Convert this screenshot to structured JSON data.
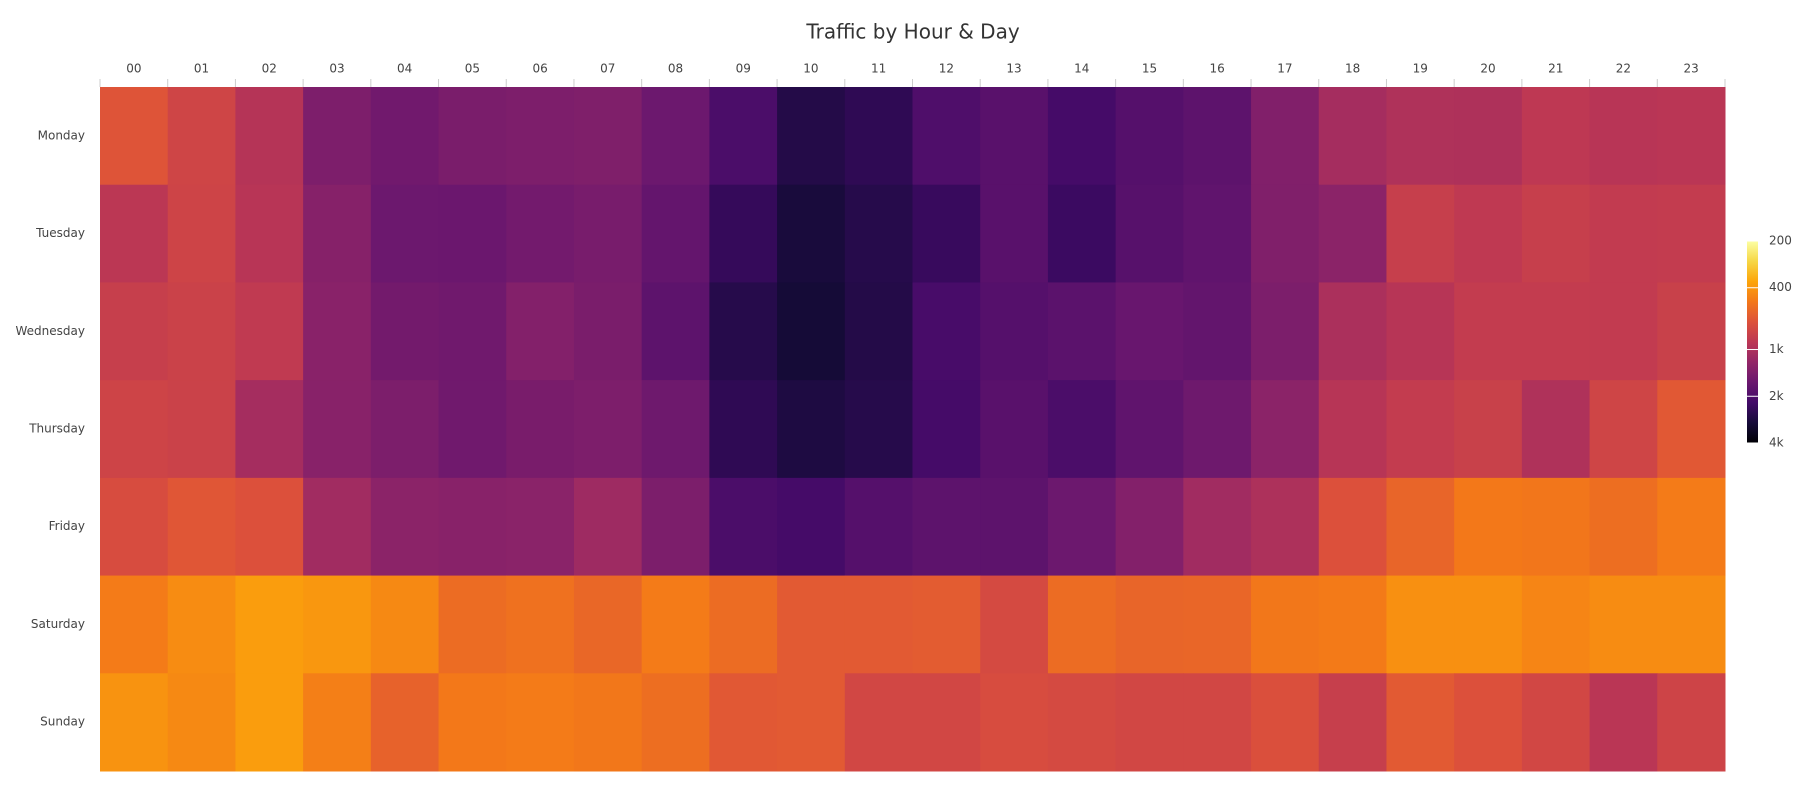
{
  "chart_data": {
    "type": "heatmap",
    "title": "Traffic by Hour & Day",
    "x": [
      "00",
      "01",
      "02",
      "03",
      "04",
      "05",
      "06",
      "07",
      "08",
      "09",
      "10",
      "11",
      "12",
      "13",
      "14",
      "15",
      "16",
      "17",
      "18",
      "19",
      "20",
      "21",
      "22",
      "23"
    ],
    "y": [
      "Monday",
      "Tuesday",
      "Wednesday",
      "Thursday",
      "Friday",
      "Saturday",
      "Sunday"
    ],
    "z": [
      [
        650,
        760,
        940,
        1420,
        1550,
        1450,
        1420,
        1400,
        1600,
        2050,
        2700,
        2500,
        2000,
        1850,
        2150,
        1900,
        1800,
        1380,
        1060,
        980,
        990,
        880,
        920,
        910
      ],
      [
        900,
        770,
        920,
        1330,
        1600,
        1620,
        1530,
        1470,
        1700,
        2400,
        2900,
        2650,
        2350,
        1850,
        2300,
        1880,
        1750,
        1390,
        1280,
        820,
        870,
        820,
        850,
        840
      ],
      [
        820,
        790,
        860,
        1300,
        1520,
        1560,
        1360,
        1450,
        1800,
        2650,
        3000,
        2700,
        2100,
        1900,
        1820,
        1650,
        1720,
        1430,
        1010,
        930,
        840,
        840,
        850,
        800
      ],
      [
        770,
        790,
        1060,
        1310,
        1430,
        1560,
        1460,
        1420,
        1580,
        2500,
        2800,
        2650,
        2150,
        1850,
        2050,
        1750,
        1580,
        1280,
        930,
        840,
        800,
        980,
        760,
        630
      ],
      [
        700,
        640,
        670,
        1090,
        1280,
        1310,
        1290,
        1110,
        1430,
        2050,
        2150,
        1900,
        1800,
        1800,
        1600,
        1360,
        1090,
        1000,
        670,
        570,
        490,
        500,
        530,
        480
      ],
      [
        480,
        430,
        385,
        400,
        440,
        540,
        520,
        560,
        480,
        540,
        620,
        620,
        610,
        720,
        540,
        570,
        565,
        495,
        485,
        420,
        420,
        450,
        430,
        430
      ],
      [
        410,
        440,
        385,
        470,
        580,
        490,
        480,
        495,
        530,
        630,
        620,
        740,
        740,
        700,
        720,
        740,
        740,
        680,
        820,
        620,
        670,
        740,
        910,
        770
      ]
    ],
    "colorscale": "Inferno",
    "reverse_scale": true,
    "log_scale": true,
    "zlim": [
      200,
      4000
    ],
    "zticks": [
      200,
      400,
      {
        "value": 1000,
        "label": "1k"
      },
      {
        "value": 2000,
        "label": "2k"
      },
      {
        "value": 4000,
        "label": "4k"
      }
    ]
  }
}
